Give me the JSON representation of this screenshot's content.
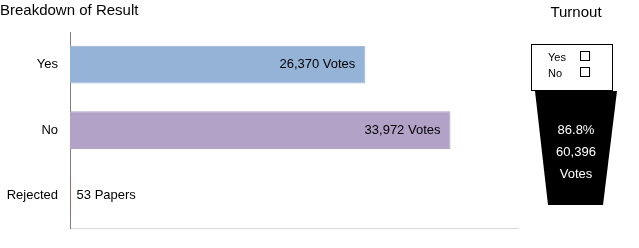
{
  "chart_data": {
    "type": "bar",
    "title": "Breakdown of Result",
    "orientation": "horizontal",
    "categories": [
      "Yes",
      "No",
      "Rejected"
    ],
    "values": [
      26370,
      33972,
      53
    ],
    "value_labels": [
      "26,370 Votes",
      "33,972 Votes",
      "53 Papers"
    ],
    "colors": [
      "#95b3d7",
      "#b3a2c7",
      "#c0504d"
    ],
    "xlim": [
      0,
      40000
    ],
    "grid": false,
    "legend": false,
    "data_labels": true,
    "tick_labels": "y"
  },
  "turnout": {
    "title": "Turnout",
    "ballot_options": [
      "Yes",
      "No"
    ],
    "lines": [
      "86.8%",
      "60,396",
      "Votes"
    ]
  }
}
